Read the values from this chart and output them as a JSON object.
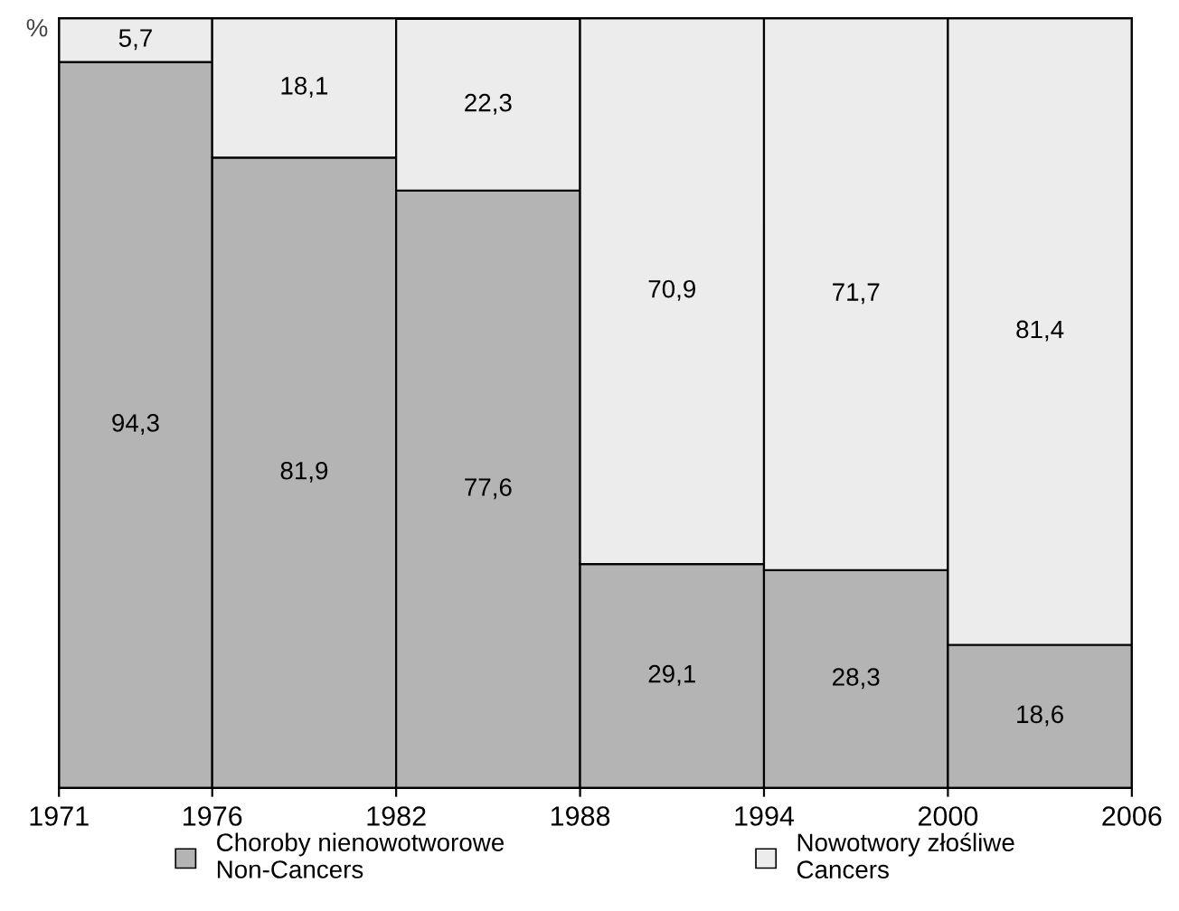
{
  "chart_data": {
    "type": "bar",
    "stacked": true,
    "ylabel": "%",
    "x": [
      1973.5,
      1979,
      1985,
      1991,
      1997,
      2003
    ],
    "xlim": [
      1971,
      2006
    ],
    "xticks": [
      1971,
      1976,
      1982,
      1988,
      1994,
      2000,
      2006
    ],
    "tick_labels": "x",
    "legend": "bottom",
    "grid": false,
    "series": [
      {
        "name": "Choroby nienowotworowe\nNon-Cancers",
        "color": "#b4b4b4",
        "values": [
          94.3,
          81.9,
          77.6,
          29.1,
          28.3,
          18.6
        ],
        "value_labels": [
          "94,3",
          "81,9",
          "77,6",
          "29,1",
          "28,3",
          "18,6"
        ]
      },
      {
        "name": "Nowotwory złośliwe\nCancers",
        "color": "#ececec",
        "values": [
          5.7,
          18.1,
          22.3,
          70.9,
          71.7,
          81.4
        ],
        "value_labels": [
          "5,7",
          "18,1",
          "22,3",
          "70,9",
          "71,7",
          "81,4"
        ]
      }
    ]
  }
}
